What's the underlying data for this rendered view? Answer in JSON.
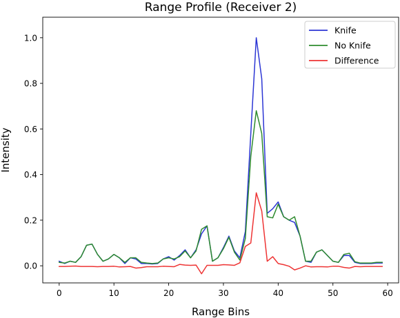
{
  "chart_data": {
    "type": "line",
    "title": "Range Profile (Receiver 2)",
    "xlabel": "Range Bins",
    "ylabel": "Intensity",
    "xlim": [
      -3,
      62
    ],
    "ylim": [
      -0.075,
      1.09
    ],
    "xticks": [
      0,
      10,
      20,
      30,
      40,
      50,
      60
    ],
    "yticks": [
      0.0,
      0.2,
      0.4,
      0.6,
      0.8,
      1.0
    ],
    "xtick_labels": [
      "0",
      "10",
      "20",
      "30",
      "40",
      "50",
      "60"
    ],
    "ytick_labels": [
      "0.0",
      "0.2",
      "0.4",
      "0.6",
      "0.8",
      "1.0"
    ],
    "grid": false,
    "legend_position": "upper right",
    "x": [
      0,
      1,
      2,
      3,
      4,
      5,
      6,
      7,
      8,
      9,
      10,
      11,
      12,
      13,
      14,
      15,
      16,
      17,
      18,
      19,
      20,
      21,
      22,
      23,
      24,
      25,
      26,
      27,
      28,
      29,
      30,
      31,
      32,
      33,
      34,
      35,
      36,
      37,
      38,
      39,
      40,
      41,
      42,
      43,
      44,
      45,
      46,
      47,
      48,
      49,
      50,
      51,
      52,
      53,
      54,
      55,
      56,
      57,
      58,
      59
    ],
    "series": [
      {
        "name": "Knife",
        "color": "#2b35d4",
        "values": [
          0.02,
          0.01,
          0.02,
          0.015,
          0.04,
          0.09,
          0.095,
          0.05,
          0.02,
          0.03,
          0.05,
          0.035,
          0.01,
          0.035,
          0.03,
          0.01,
          0.01,
          0.008,
          0.01,
          0.03,
          0.04,
          0.025,
          0.045,
          0.07,
          0.035,
          0.07,
          0.14,
          0.175,
          0.02,
          0.035,
          0.08,
          0.13,
          0.065,
          0.035,
          0.15,
          0.58,
          1.0,
          0.82,
          0.23,
          0.25,
          0.28,
          0.215,
          0.2,
          0.19,
          0.13,
          0.02,
          0.015,
          0.06,
          0.07,
          0.045,
          0.02,
          0.015,
          0.045,
          0.045,
          0.015,
          0.01,
          0.01,
          0.01,
          0.012,
          0.012
        ]
      },
      {
        "name": "No Knife",
        "color": "#2e8b2e",
        "values": [
          0.015,
          0.012,
          0.02,
          0.015,
          0.04,
          0.09,
          0.095,
          0.05,
          0.02,
          0.03,
          0.05,
          0.035,
          0.015,
          0.035,
          0.035,
          0.015,
          0.012,
          0.01,
          0.012,
          0.03,
          0.035,
          0.03,
          0.04,
          0.065,
          0.035,
          0.065,
          0.16,
          0.175,
          0.02,
          0.035,
          0.075,
          0.125,
          0.06,
          0.025,
          0.12,
          0.48,
          0.68,
          0.58,
          0.215,
          0.21,
          0.27,
          0.215,
          0.2,
          0.215,
          0.13,
          0.02,
          0.02,
          0.06,
          0.07,
          0.045,
          0.02,
          0.015,
          0.05,
          0.055,
          0.018,
          0.012,
          0.012,
          0.012,
          0.015,
          0.015
        ]
      },
      {
        "name": "Difference",
        "color": "#ee3333",
        "values": [
          -0.003,
          -0.003,
          -0.002,
          -0.001,
          -0.003,
          -0.003,
          -0.003,
          -0.004,
          -0.003,
          -0.003,
          -0.002,
          -0.005,
          -0.004,
          -0.003,
          -0.01,
          -0.008,
          -0.004,
          -0.004,
          -0.004,
          -0.002,
          -0.003,
          -0.004,
          0.006,
          0.003,
          0.002,
          0.003,
          -0.035,
          0.002,
          0.002,
          0.002,
          0.005,
          0.004,
          0.002,
          0.013,
          0.085,
          0.1,
          0.32,
          0.24,
          0.02,
          0.04,
          0.01,
          0.005,
          -0.002,
          -0.018,
          -0.01,
          0.0,
          -0.005,
          -0.004,
          -0.004,
          -0.005,
          -0.002,
          -0.002,
          -0.007,
          -0.01,
          -0.003,
          -0.004,
          -0.003,
          -0.003,
          -0.003,
          -0.003
        ]
      }
    ]
  }
}
